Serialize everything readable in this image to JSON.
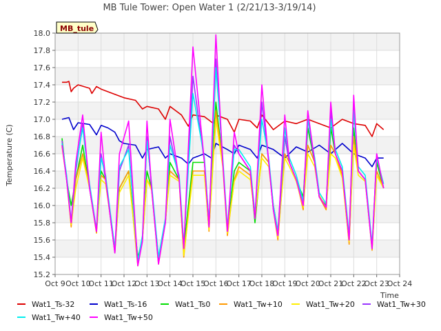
{
  "chart_data": {
    "type": "line",
    "title": "MB Tule Tower: Open Water 1 (2/21/13-3/19/14)",
    "xlabel": "Time",
    "ylabel": "Temperature (C)",
    "badge": "MB_tule",
    "xlim": [
      9,
      24
    ],
    "ylim": [
      15.2,
      18.0
    ],
    "x_ticks": [
      {
        "x": 9,
        "label": "Oct 9"
      },
      {
        "x": 10,
        "label": "Oct 10"
      },
      {
        "x": 11,
        "label": "Oct 11"
      },
      {
        "x": 12,
        "label": "Oct 12"
      },
      {
        "x": 13,
        "label": "Oct 13"
      },
      {
        "x": 14,
        "label": "Oct 14"
      },
      {
        "x": 15,
        "label": "Oct 15"
      },
      {
        "x": 16,
        "label": "Oct 16"
      },
      {
        "x": 17,
        "label": "Oct 17"
      },
      {
        "x": 18,
        "label": "Oct 18"
      },
      {
        "x": 19,
        "label": "Oct 19"
      },
      {
        "x": 20,
        "label": "Oct 20"
      },
      {
        "x": 21,
        "label": "Oct 21"
      },
      {
        "x": 22,
        "label": "Oct 22"
      },
      {
        "x": 23,
        "label": "Oct 23"
      },
      {
        "x": 24,
        "label": "Oct 24"
      }
    ],
    "y_ticks": [
      15.2,
      15.4,
      15.6,
      15.8,
      16.0,
      16.2,
      16.4,
      16.6,
      16.8,
      17.0,
      17.2,
      17.4,
      17.6,
      17.8,
      18.0
    ],
    "grid": true,
    "legend_position": "bottom",
    "series": [
      {
        "name": "Wat1_Ts-32",
        "color": "#dd0000",
        "x": [
          9.3,
          9.5,
          9.6,
          9.7,
          9.8,
          10.0,
          10.5,
          10.6,
          10.8,
          11.0,
          11.5,
          12.0,
          12.5,
          12.8,
          13.0,
          13.5,
          13.8,
          14.0,
          14.5,
          14.8,
          15.0,
          15.5,
          15.9,
          16.0,
          16.5,
          16.8,
          17.0,
          17.5,
          17.8,
          18.0,
          18.5,
          19.0,
          19.5,
          20.0,
          20.5,
          21.0,
          21.5,
          22.0,
          22.5,
          22.8,
          23.0,
          23.3
        ],
        "y": [
          17.43,
          17.43,
          17.44,
          17.32,
          17.36,
          17.4,
          17.36,
          17.3,
          17.38,
          17.35,
          17.3,
          17.25,
          17.22,
          17.12,
          17.15,
          17.12,
          17.0,
          17.15,
          17.05,
          16.92,
          17.05,
          17.03,
          16.95,
          17.05,
          17.0,
          16.85,
          17.0,
          16.98,
          16.9,
          17.05,
          16.88,
          16.98,
          16.95,
          17.0,
          16.95,
          16.9,
          17.0,
          16.95,
          16.93,
          16.8,
          16.95,
          16.88
        ]
      },
      {
        "name": "Wat1_Ts-16",
        "color": "#0000cc",
        "x": [
          9.3,
          9.6,
          9.8,
          10.0,
          10.5,
          10.8,
          11.0,
          11.3,
          11.6,
          11.8,
          12.0,
          12.5,
          12.8,
          13.0,
          13.5,
          13.8,
          14.0,
          14.5,
          14.8,
          15.0,
          15.5,
          15.8,
          16.0,
          16.5,
          16.8,
          17.0,
          17.5,
          17.8,
          18.0,
          18.5,
          19.0,
          19.5,
          20.0,
          20.5,
          21.0,
          21.5,
          22.0,
          22.5,
          22.8,
          23.0,
          23.3
        ],
        "y": [
          17.0,
          17.02,
          16.88,
          16.96,
          16.94,
          16.82,
          16.93,
          16.9,
          16.85,
          16.75,
          16.72,
          16.7,
          16.55,
          16.65,
          16.68,
          16.55,
          16.6,
          16.55,
          16.48,
          16.55,
          16.6,
          16.55,
          16.72,
          16.65,
          16.6,
          16.7,
          16.65,
          16.55,
          16.7,
          16.65,
          16.55,
          16.68,
          16.62,
          16.7,
          16.6,
          16.72,
          16.6,
          16.55,
          16.45,
          16.55,
          16.55
        ]
      },
      {
        "name": "Wat1_Ts0",
        "color": "#00dd00",
        "x": [
          9.3,
          9.5,
          9.7,
          9.9,
          10.2,
          10.5,
          10.8,
          11.0,
          11.2,
          11.6,
          11.8,
          12.2,
          12.6,
          12.8,
          13.0,
          13.2,
          13.5,
          13.8,
          14.0,
          14.4,
          14.6,
          15.0,
          15.5,
          15.7,
          16.0,
          16.3,
          16.5,
          16.8,
          17.0,
          17.5,
          17.7,
          18.0,
          18.3,
          18.5,
          18.7,
          19.0,
          19.2,
          19.5,
          19.8,
          20.0,
          20.3,
          20.5,
          20.8,
          21.0,
          21.2,
          21.5,
          21.8,
          22.0,
          22.2,
          22.5,
          22.8,
          23.0,
          23.3
        ],
        "y": [
          16.78,
          16.3,
          16.0,
          16.3,
          16.7,
          16.2,
          15.7,
          16.4,
          16.3,
          15.5,
          16.2,
          16.4,
          15.4,
          15.6,
          16.4,
          16.2,
          15.4,
          15.8,
          16.5,
          16.3,
          15.5,
          16.5,
          16.5,
          15.8,
          17.2,
          16.5,
          15.7,
          16.4,
          16.5,
          16.4,
          15.8,
          16.6,
          16.5,
          16.0,
          15.7,
          16.8,
          16.5,
          16.3,
          16.1,
          16.9,
          16.5,
          16.1,
          16.0,
          16.9,
          16.6,
          16.4,
          15.6,
          16.9,
          16.4,
          16.3,
          15.5,
          16.5,
          16.2
        ]
      },
      {
        "name": "Wat1_Tw+10",
        "color": "#ff9900",
        "x": [
          9.3,
          9.5,
          9.7,
          9.9,
          10.2,
          10.5,
          10.8,
          11.0,
          11.2,
          11.6,
          11.8,
          12.2,
          12.6,
          12.8,
          13.0,
          13.2,
          13.5,
          13.8,
          14.0,
          14.4,
          14.6,
          15.0,
          15.5,
          15.7,
          16.0,
          16.3,
          16.5,
          16.8,
          17.0,
          17.5,
          17.7,
          18.0,
          18.3,
          18.5,
          18.7,
          19.0,
          19.2,
          19.5,
          19.8,
          20.0,
          20.3,
          20.5,
          20.8,
          21.0,
          21.2,
          21.5,
          21.8,
          22.0,
          22.2,
          22.5,
          22.8,
          23.0,
          23.3
        ],
        "y": [
          16.7,
          16.3,
          15.75,
          16.3,
          16.6,
          16.2,
          15.68,
          16.35,
          16.3,
          15.45,
          16.2,
          16.4,
          15.3,
          15.6,
          16.3,
          16.2,
          15.32,
          15.8,
          16.4,
          16.3,
          15.4,
          16.4,
          16.4,
          15.7,
          17.1,
          16.5,
          15.65,
          16.3,
          16.45,
          16.35,
          15.85,
          16.6,
          16.5,
          15.95,
          15.6,
          16.6,
          16.5,
          16.3,
          15.95,
          16.7,
          16.5,
          16.1,
          15.95,
          16.7,
          16.6,
          16.35,
          15.55,
          16.8,
          16.4,
          16.3,
          15.48,
          16.4,
          16.2
        ]
      },
      {
        "name": "Wat1_Tw+20",
        "color": "#ffee00",
        "x": [
          9.3,
          9.5,
          9.7,
          9.9,
          10.2,
          10.5,
          10.8,
          11.0,
          11.2,
          11.6,
          11.8,
          12.2,
          12.6,
          12.8,
          13.0,
          13.2,
          13.5,
          13.8,
          14.0,
          14.4,
          14.6,
          15.0,
          15.5,
          15.7,
          16.0,
          16.3,
          16.5,
          16.8,
          17.0,
          17.5,
          17.7,
          18.0,
          18.3,
          18.5,
          18.7,
          19.0,
          19.2,
          19.5,
          19.8,
          20.0,
          20.3,
          20.5,
          20.8,
          21.0,
          21.2,
          21.5,
          21.8,
          22.0,
          22.2,
          22.5,
          22.8,
          23.0,
          23.3
        ],
        "y": [
          16.68,
          16.3,
          15.78,
          16.2,
          16.55,
          16.2,
          15.72,
          16.3,
          16.25,
          15.5,
          16.15,
          16.35,
          15.35,
          15.62,
          16.3,
          16.18,
          15.35,
          15.82,
          16.35,
          16.28,
          15.42,
          16.35,
          16.35,
          15.72,
          17.0,
          16.45,
          15.68,
          16.28,
          16.4,
          16.3,
          15.87,
          16.55,
          16.45,
          15.98,
          15.63,
          16.55,
          16.45,
          16.28,
          15.98,
          16.6,
          16.45,
          16.12,
          15.98,
          16.6,
          16.55,
          16.32,
          15.58,
          16.7,
          16.35,
          16.28,
          15.5,
          16.35,
          16.2
        ]
      },
      {
        "name": "Wat1_Tw+30",
        "color": "#9933ff",
        "x": [
          9.3,
          9.5,
          9.7,
          9.9,
          10.2,
          10.5,
          10.8,
          11.0,
          11.2,
          11.6,
          11.8,
          12.2,
          12.6,
          12.8,
          13.0,
          13.2,
          13.5,
          13.8,
          14.0,
          14.4,
          14.6,
          15.0,
          15.5,
          15.7,
          16.0,
          16.3,
          16.5,
          16.8,
          17.0,
          17.5,
          17.7,
          18.0,
          18.3,
          18.5,
          18.7,
          19.0,
          19.2,
          19.5,
          19.8,
          20.0,
          20.3,
          20.5,
          20.8,
          21.0,
          21.2,
          21.5,
          21.8,
          22.0,
          22.2,
          22.5,
          22.8,
          23.0,
          23.3
        ],
        "y": [
          16.75,
          16.3,
          15.8,
          16.4,
          16.95,
          16.2,
          15.7,
          16.6,
          16.3,
          15.45,
          16.4,
          16.7,
          15.32,
          15.6,
          16.8,
          16.2,
          15.35,
          15.8,
          16.8,
          16.3,
          15.5,
          17.5,
          16.5,
          15.75,
          17.7,
          16.5,
          15.7,
          16.7,
          16.6,
          16.4,
          15.85,
          17.2,
          16.5,
          15.95,
          15.65,
          16.8,
          16.5,
          16.3,
          16.0,
          17.0,
          16.5,
          16.1,
          15.98,
          17.1,
          16.6,
          16.4,
          15.6,
          17.2,
          16.4,
          16.3,
          15.5,
          16.6,
          16.2
        ]
      },
      {
        "name": "Wat1_Tw+40",
        "color": "#00eeee",
        "x": [
          9.3,
          9.5,
          9.7,
          9.9,
          10.2,
          10.5,
          10.8,
          11.0,
          11.2,
          11.6,
          11.8,
          12.2,
          12.6,
          12.8,
          13.0,
          13.2,
          13.5,
          13.8,
          14.0,
          14.4,
          14.6,
          15.0,
          15.5,
          15.7,
          16.0,
          16.3,
          16.5,
          16.8,
          17.0,
          17.5,
          17.7,
          18.0,
          18.3,
          18.5,
          18.7,
          19.0,
          19.2,
          19.5,
          19.8,
          20.0,
          20.3,
          20.5,
          20.8,
          21.0,
          21.2,
          21.5,
          21.8,
          22.0,
          22.2,
          22.5,
          22.8,
          23.0,
          23.3
        ],
        "y": [
          16.72,
          16.35,
          15.82,
          16.45,
          16.9,
          16.25,
          15.72,
          16.55,
          16.35,
          15.5,
          16.45,
          16.65,
          15.36,
          15.65,
          16.75,
          16.25,
          15.4,
          15.85,
          16.7,
          16.35,
          15.55,
          17.3,
          16.55,
          15.8,
          17.6,
          16.55,
          15.75,
          16.65,
          16.65,
          16.45,
          15.9,
          17.0,
          16.55,
          16.0,
          15.7,
          16.9,
          16.55,
          16.35,
          16.05,
          17.0,
          16.55,
          16.15,
          16.02,
          17.0,
          16.65,
          16.45,
          15.65,
          17.1,
          16.45,
          16.35,
          15.55,
          16.55,
          16.25
        ]
      },
      {
        "name": "Wat1_Tw+50",
        "color": "#ff00ff",
        "x": [
          9.3,
          9.5,
          9.7,
          9.9,
          10.2,
          10.5,
          10.8,
          11.0,
          11.2,
          11.6,
          11.8,
          12.2,
          12.6,
          12.8,
          13.0,
          13.2,
          13.5,
          13.8,
          14.0,
          14.4,
          14.6,
          15.0,
          15.5,
          15.7,
          16.0,
          16.3,
          16.5,
          16.8,
          17.0,
          17.5,
          17.7,
          18.0,
          18.3,
          18.5,
          18.7,
          19.0,
          19.2,
          19.5,
          19.8,
          20.0,
          20.3,
          20.5,
          20.8,
          21.0,
          21.2,
          21.5,
          21.8,
          22.0,
          22.2,
          22.5,
          22.8,
          23.0,
          23.3
        ],
        "y": [
          16.7,
          16.3,
          15.8,
          16.5,
          17.05,
          16.2,
          15.7,
          16.85,
          16.3,
          15.45,
          16.6,
          16.98,
          15.3,
          15.58,
          16.98,
          16.2,
          15.32,
          15.8,
          17.0,
          16.3,
          15.5,
          17.84,
          16.5,
          15.75,
          17.98,
          16.5,
          15.7,
          16.85,
          16.6,
          16.4,
          15.85,
          17.4,
          16.5,
          15.95,
          15.65,
          17.05,
          16.5,
          16.3,
          16.0,
          17.1,
          16.5,
          16.1,
          15.98,
          17.2,
          16.6,
          16.4,
          15.6,
          17.28,
          16.4,
          16.3,
          15.5,
          16.6,
          16.2
        ]
      }
    ]
  }
}
